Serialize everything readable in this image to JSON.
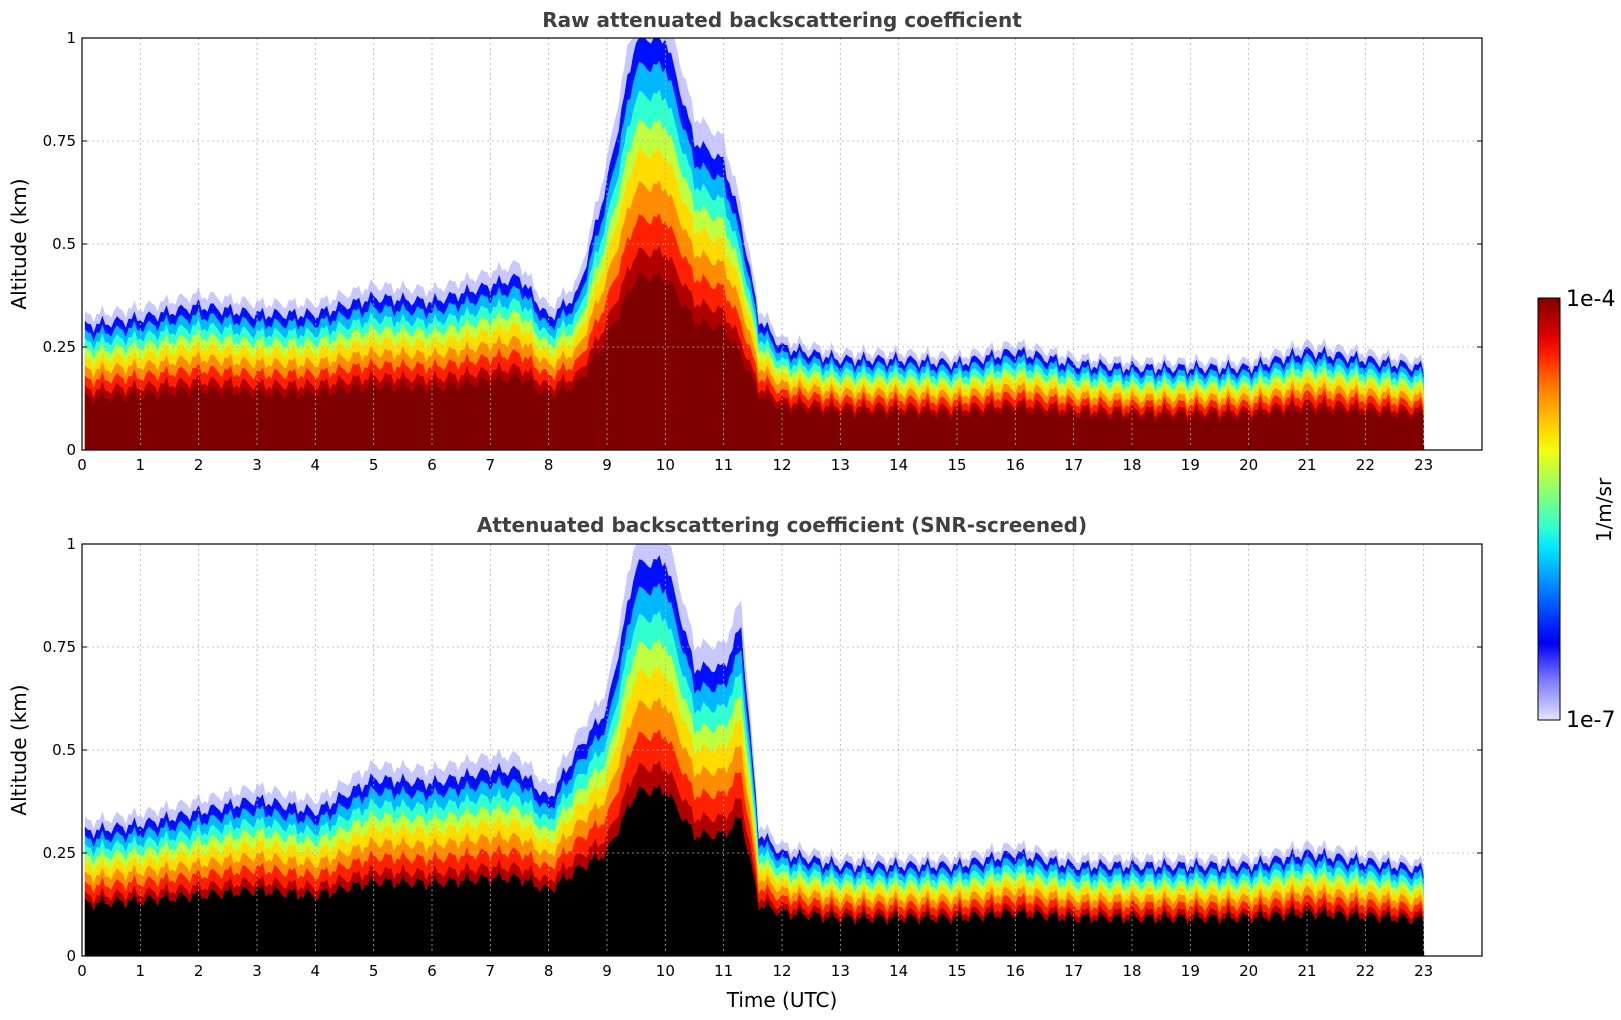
{
  "colorbar": {
    "label": "1/m/sr",
    "top_label": "1e-4",
    "bottom_label": "1e-7",
    "colors": [
      "#7f0000",
      "#b00000",
      "#e00000",
      "#ff2000",
      "#ff5a00",
      "#ff8c00",
      "#ffb400",
      "#ffdc00",
      "#f0ff10",
      "#c0ff40",
      "#90ff70",
      "#60ffa0",
      "#30ffd0",
      "#00e8ff",
      "#00b8ff",
      "#0088ff",
      "#0058ff",
      "#0028ff",
      "#0000f0",
      "#4040ff",
      "#8080ff",
      "#b0b0ff",
      "#e6e6ff"
    ]
  },
  "chart_data": [
    {
      "type": "heatmap",
      "title": "Raw attenuated backscattering coefficient",
      "xlabel": "",
      "ylabel": "Altitude (km)",
      "xlim": [
        0,
        24
      ],
      "ylim": [
        0,
        1
      ],
      "xticks": [
        "0",
        "1",
        "2",
        "3",
        "4",
        "5",
        "6",
        "7",
        "8",
        "9",
        "10",
        "11",
        "12",
        "13",
        "14",
        "15",
        "16",
        "17",
        "18",
        "19",
        "20",
        "21",
        "22",
        "23"
      ],
      "yticks": [
        "0",
        "0.25",
        "0.5",
        "0.75",
        "1"
      ],
      "grid": true,
      "data_end_hour": 23,
      "saturated_color": "#7f0000",
      "boundary_layer_top_km": [
        [
          0,
          0.3
        ],
        [
          1,
          0.32
        ],
        [
          2,
          0.35
        ],
        [
          3,
          0.33
        ],
        [
          4,
          0.33
        ],
        [
          5,
          0.37
        ],
        [
          6,
          0.36
        ],
        [
          7,
          0.4
        ],
        [
          7.5,
          0.42
        ],
        [
          8,
          0.32
        ],
        [
          8.5,
          0.38
        ],
        [
          9,
          0.65
        ],
        [
          9.5,
          1.0
        ],
        [
          10,
          1.0
        ],
        [
          10.5,
          0.75
        ],
        [
          11,
          0.7
        ],
        [
          11.3,
          0.55
        ],
        [
          11.6,
          0.32
        ],
        [
          12,
          0.25
        ],
        [
          13,
          0.22
        ],
        [
          14,
          0.22
        ],
        [
          15,
          0.21
        ],
        [
          16,
          0.24
        ],
        [
          17,
          0.21
        ],
        [
          18,
          0.2
        ],
        [
          19,
          0.2
        ],
        [
          20,
          0.2
        ],
        [
          21,
          0.24
        ],
        [
          22,
          0.22
        ],
        [
          23,
          0.2
        ]
      ]
    },
    {
      "type": "heatmap",
      "title": "Attenuated backscattering coefficient (SNR-screened)",
      "xlabel": "Time (UTC)",
      "ylabel": "Altitude (km)",
      "xlim": [
        0,
        24
      ],
      "ylim": [
        0,
        1
      ],
      "xticks": [
        "0",
        "1",
        "2",
        "3",
        "4",
        "5",
        "6",
        "7",
        "8",
        "9",
        "10",
        "11",
        "12",
        "13",
        "14",
        "15",
        "16",
        "17",
        "18",
        "19",
        "20",
        "21",
        "22",
        "23"
      ],
      "yticks": [
        "0",
        "0.25",
        "0.5",
        "0.75",
        "1"
      ],
      "grid": true,
      "data_end_hour": 23,
      "saturated_color": "#000000",
      "boundary_layer_top_km": [
        [
          0,
          0.3
        ],
        [
          1,
          0.32
        ],
        [
          2,
          0.35
        ],
        [
          3,
          0.38
        ],
        [
          4,
          0.35
        ],
        [
          5,
          0.43
        ],
        [
          6,
          0.42
        ],
        [
          7,
          0.45
        ],
        [
          7.5,
          0.45
        ],
        [
          8,
          0.38
        ],
        [
          8.5,
          0.5
        ],
        [
          9,
          0.6
        ],
        [
          9.5,
          0.95
        ],
        [
          10,
          0.96
        ],
        [
          10.5,
          0.7
        ],
        [
          11,
          0.7
        ],
        [
          11.3,
          0.8
        ],
        [
          11.6,
          0.3
        ],
        [
          12,
          0.25
        ],
        [
          13,
          0.22
        ],
        [
          14,
          0.22
        ],
        [
          15,
          0.22
        ],
        [
          16,
          0.25
        ],
        [
          17,
          0.22
        ],
        [
          18,
          0.22
        ],
        [
          19,
          0.22
        ],
        [
          20,
          0.22
        ],
        [
          21,
          0.25
        ],
        [
          22,
          0.23
        ],
        [
          23,
          0.21
        ]
      ]
    }
  ]
}
